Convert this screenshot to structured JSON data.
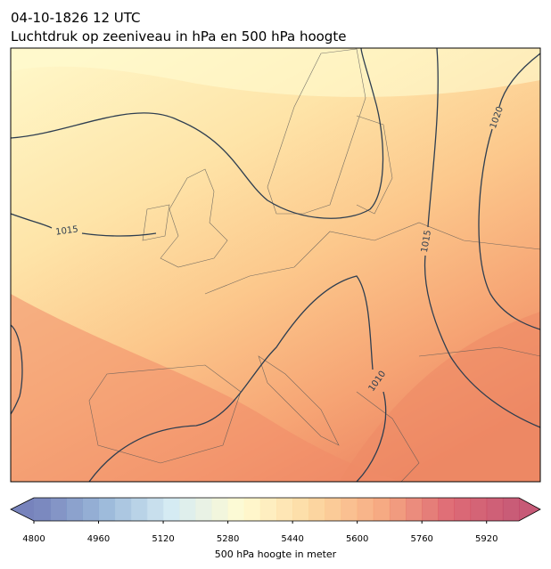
{
  "header": {
    "title": "04-10-1826 12 UTC",
    "subtitle": "Luchtdruk op zeeniveau in hPa en 500 hPa hoogte"
  },
  "isobar_labels": [
    {
      "value": 1015
    },
    {
      "value": 1020
    },
    {
      "value": 1015
    },
    {
      "value": 1010
    }
  ],
  "colorbar": {
    "label": "500 hPa hoogte in meter",
    "range": [
      4800,
      6000
    ],
    "step": 40,
    "extend": "both",
    "ticks": [
      4800,
      4960,
      5120,
      5280,
      5440,
      5600,
      5760,
      5920
    ],
    "colors": [
      "#5f6db0",
      "#89acd3",
      "#cfe8f1",
      "#fffacb",
      "#fdd392",
      "#f59c6d",
      "#d9525e",
      "#bd3d5f"
    ]
  }
}
